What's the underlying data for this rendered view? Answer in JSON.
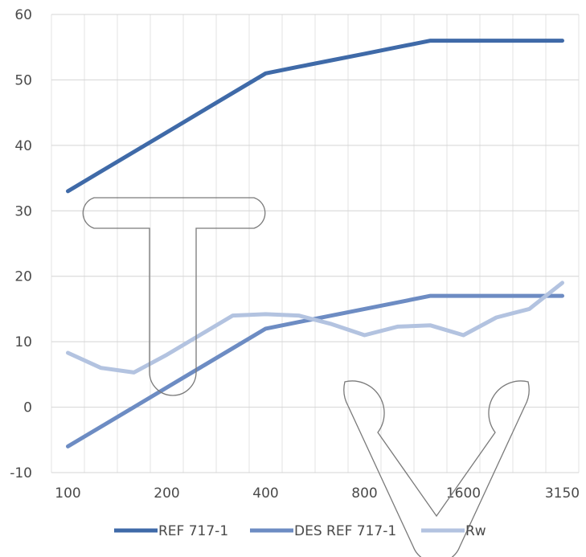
{
  "chart_data": {
    "type": "line",
    "title": "",
    "xlabel": "",
    "ylabel": "",
    "x": [
      100,
      125,
      160,
      200,
      250,
      315,
      400,
      500,
      630,
      800,
      1000,
      1250,
      1600,
      2000,
      2500,
      3150
    ],
    "x_tick_labels": [
      "100",
      "200",
      "400",
      "800",
      "1600",
      "3150"
    ],
    "ylim": [
      -10,
      60
    ],
    "y_ticks": [
      -10,
      0,
      10,
      20,
      30,
      40,
      50,
      60
    ],
    "grid": "on",
    "legend": "bottom",
    "series": [
      {
        "name": "REF 717-1",
        "color": "#3f6aa8",
        "values": [
          33,
          36,
          39,
          42,
          45,
          48,
          51,
          52,
          53,
          54,
          55,
          56,
          56,
          56,
          56,
          56
        ]
      },
      {
        "name": "DES REF 717-1",
        "color": "#6d8cc3",
        "values": [
          -6,
          -3,
          0,
          3,
          6,
          9,
          12,
          13,
          14,
          15,
          16,
          17,
          17,
          17,
          17,
          17
        ]
      },
      {
        "name": "Rw",
        "color": "#b3c3e0",
        "values": [
          8.3,
          6,
          5.3,
          8,
          11,
          14,
          14.2,
          14,
          12.7,
          11,
          12.3,
          12.5,
          11,
          13.7,
          15,
          19
        ]
      }
    ]
  }
}
